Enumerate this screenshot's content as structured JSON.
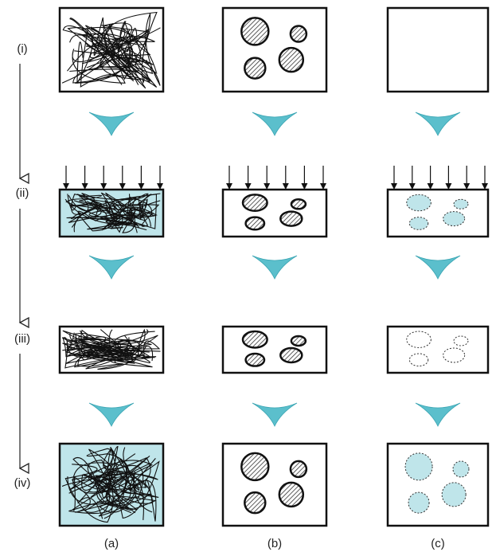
{
  "rows": [
    "(i)",
    "(ii)",
    "(iii)",
    "(iv)"
  ],
  "columns": [
    "(a)",
    "(b)",
    "(c)"
  ]
}
